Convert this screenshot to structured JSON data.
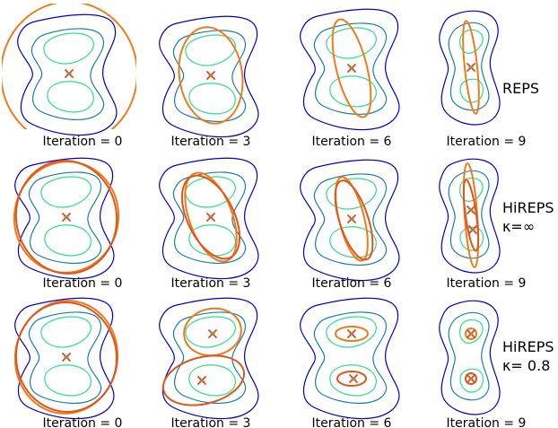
{
  "rows": [
    {
      "method_lines": [
        "REPS"
      ],
      "panels": [
        {
          "caption": "Iteration = 0"
        },
        {
          "caption": "Iteration = 3"
        },
        {
          "caption": "Iteration = 6"
        },
        {
          "caption": "Iteration = 9"
        }
      ]
    },
    {
      "method_lines": [
        "HiREPS",
        "κ=∞"
      ],
      "panels": [
        {
          "caption": "Iteration = 0"
        },
        {
          "caption": "Iteration = 3"
        },
        {
          "caption": "Iteration = 6"
        },
        {
          "caption": "Iteration = 9"
        }
      ]
    },
    {
      "method_lines": [
        "HiREPS",
        "κ= 0.8"
      ],
      "panels": [
        {
          "caption": "Iteration = 0"
        },
        {
          "caption": "Iteration = 3"
        },
        {
          "caption": "Iteration = 6"
        },
        {
          "caption": "Iteration = 9"
        }
      ]
    }
  ],
  "colors": {
    "contour_outer": "#0000cd",
    "contour_mid": "#1a80a8",
    "contour_inner": "#2ee08a",
    "policy_ellipse": "#f07b1a",
    "policy_ellipse_dark": "#e0551a",
    "sample_marker": "#e8451a"
  }
}
